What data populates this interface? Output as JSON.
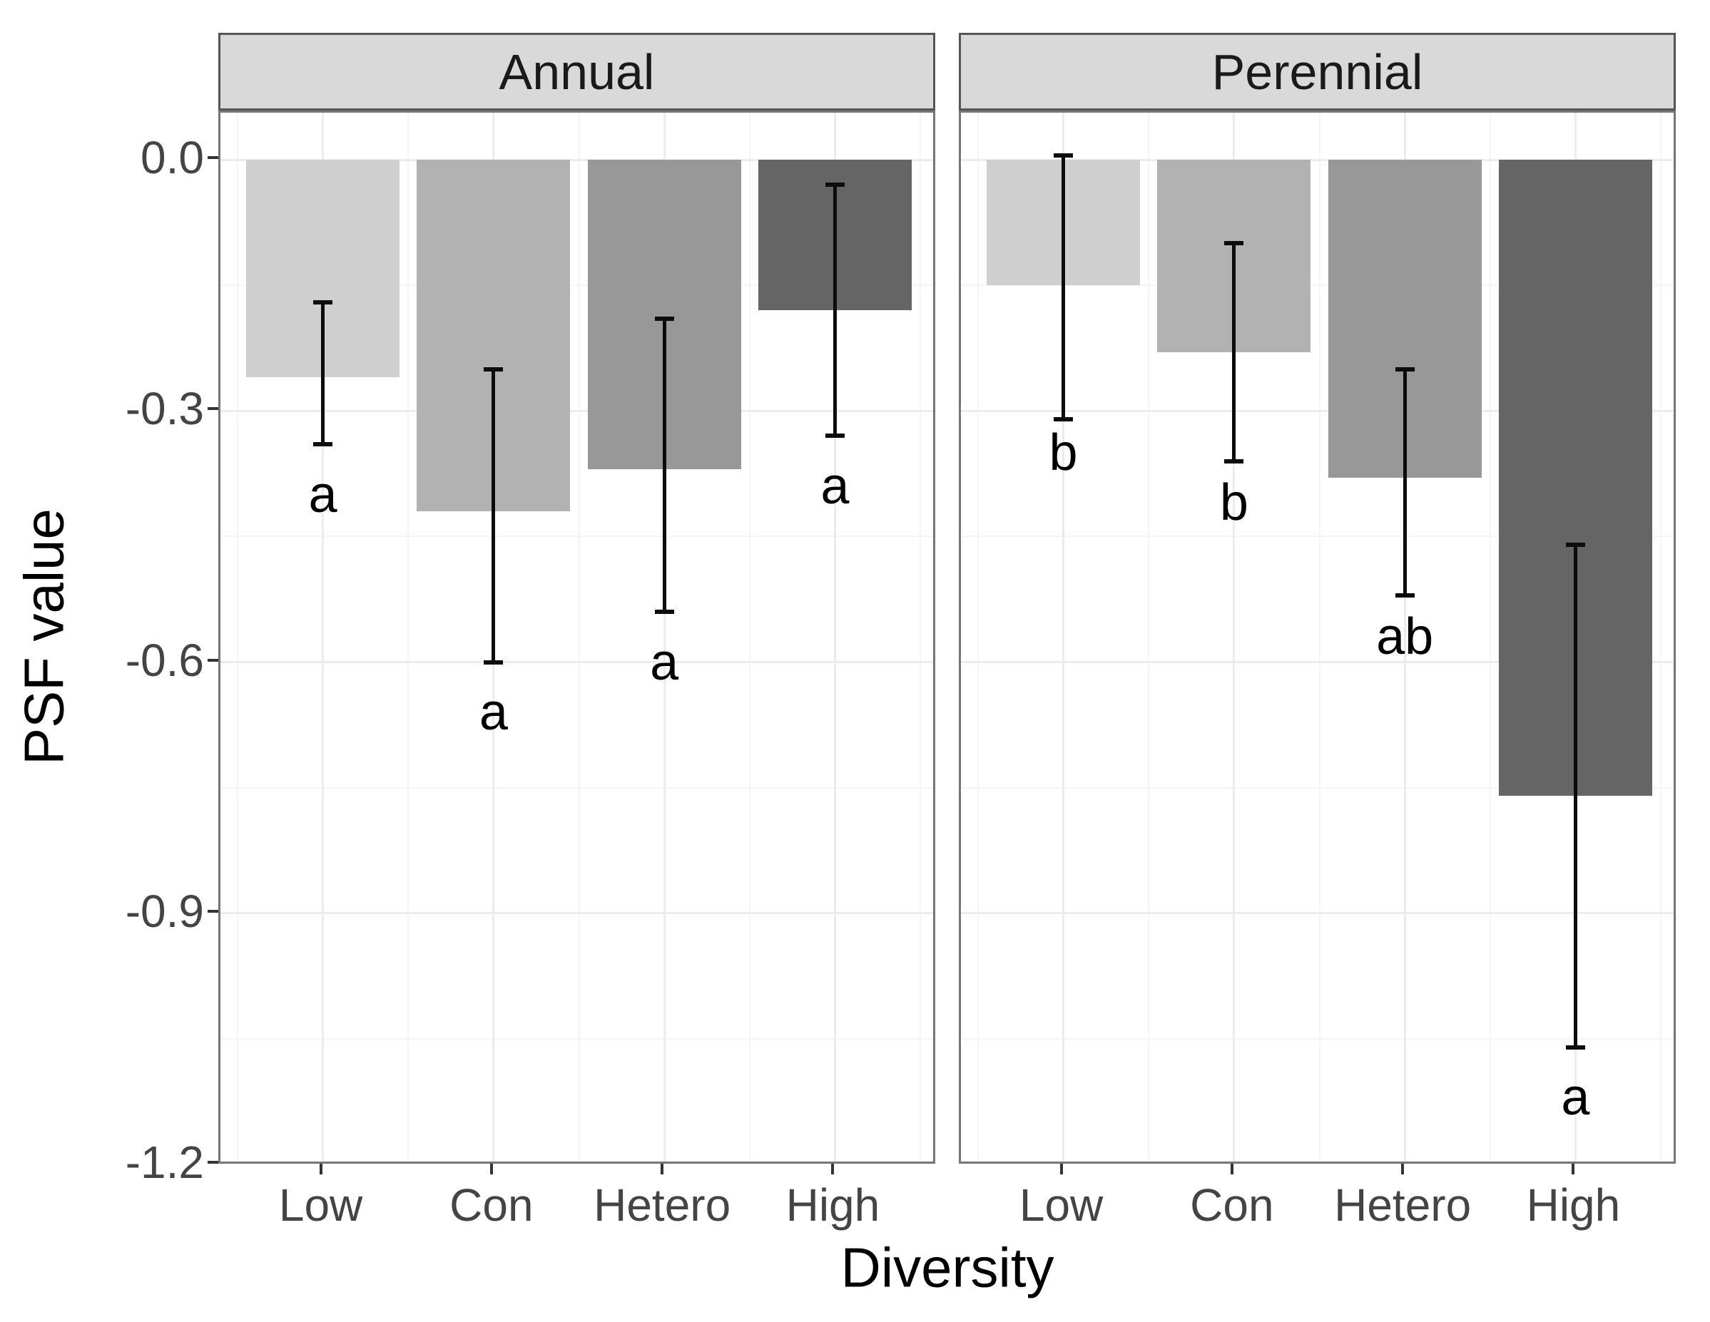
{
  "chart_data": {
    "type": "bar",
    "title": "",
    "xlabel": "Diversity",
    "ylabel": "PSF value",
    "orientation": "vertical-negative",
    "grid": "major+minor",
    "legend": "none",
    "categories": [
      "Low",
      "Con",
      "Hetero",
      "High"
    ],
    "ylim": [
      0.06,
      -1.2
    ],
    "y_major_ticks": [
      {
        "label": "0.0",
        "value": 0.0
      },
      {
        "label": "-0.3",
        "value": -0.3
      },
      {
        "label": "-0.6",
        "value": -0.6
      },
      {
        "label": "-0.9",
        "value": -0.9
      },
      {
        "label": "-1.2",
        "value": -1.2
      }
    ],
    "y_minor_gridlines": [
      -0.15,
      -0.45,
      -0.75,
      -1.05
    ],
    "facets": [
      {
        "label": "Annual",
        "bars": [
          {
            "category": "Low",
            "mean": -0.26,
            "err_upper": -0.17,
            "err_lower": -0.34,
            "sig_letter": "a",
            "letter_y": -0.4,
            "fill": "#cfcfcf"
          },
          {
            "category": "Con",
            "mean": -0.42,
            "err_upper": -0.25,
            "err_lower": -0.6,
            "sig_letter": "a",
            "letter_y": -0.66,
            "fill": "#b2b2b2"
          },
          {
            "category": "Hetero",
            "mean": -0.37,
            "err_upper": -0.19,
            "err_lower": -0.54,
            "sig_letter": "a",
            "letter_y": -0.6,
            "fill": "#989898"
          },
          {
            "category": "High",
            "mean": -0.18,
            "err_upper": -0.03,
            "err_lower": -0.33,
            "sig_letter": "a",
            "letter_y": -0.39,
            "fill": "#656565"
          }
        ]
      },
      {
        "label": "Perennial",
        "bars": [
          {
            "category": "Low",
            "mean": -0.15,
            "err_upper": 0.005,
            "err_lower": -0.31,
            "sig_letter": "b",
            "letter_y": -0.35,
            "fill": "#cfcfcf"
          },
          {
            "category": "Con",
            "mean": -0.23,
            "err_upper": -0.1,
            "err_lower": -0.36,
            "sig_letter": "b",
            "letter_y": -0.41,
            "fill": "#b2b2b2"
          },
          {
            "category": "Hetero",
            "mean": -0.38,
            "err_upper": -0.25,
            "err_lower": -0.52,
            "sig_letter": "ab",
            "letter_y": -0.57,
            "fill": "#989898"
          },
          {
            "category": "High",
            "mean": -0.76,
            "err_upper": -0.46,
            "err_lower": -1.06,
            "sig_letter": "a",
            "letter_y": -1.12,
            "fill": "#656565"
          }
        ]
      }
    ],
    "styles": {
      "strip_bg": "#d9d9d9",
      "strip_border": "#555555",
      "strip_text": "#1a1a1a",
      "panel_bg": "#ffffff",
      "panel_border": "#767676",
      "grid_major": "#ececec",
      "grid_minor": "#f5f5f5",
      "axis_text": "#444444",
      "axis_title": "#000000",
      "error_bar": "#0c0c0c",
      "tick_mark": "#333333"
    }
  }
}
